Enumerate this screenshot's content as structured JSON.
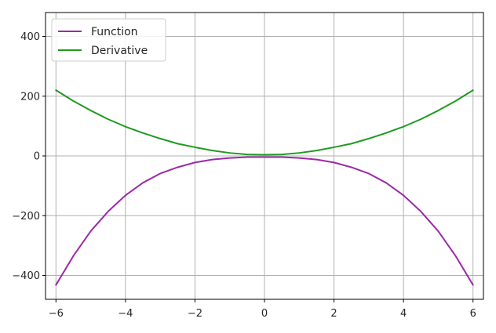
{
  "chart_data": {
    "type": "line",
    "title": "",
    "xlabel": "",
    "ylabel": "",
    "xlim": [
      -6.3,
      6.3
    ],
    "ylim": [
      -480,
      480
    ],
    "xticks": [
      -6,
      -4,
      -2,
      0,
      2,
      4,
      6
    ],
    "xtick_labels": [
      "−6",
      "−4",
      "−2",
      "0",
      "2",
      "4",
      "6"
    ],
    "yticks": [
      -400,
      -200,
      0,
      200,
      400
    ],
    "ytick_labels": [
      "−400",
      "−200",
      "0",
      "200",
      "400"
    ],
    "grid": true,
    "legend_position": "top-left",
    "x": [
      -6,
      -5.5,
      -5,
      -4.5,
      -4,
      -3.5,
      -3,
      -2.5,
      -2,
      -1.5,
      -1,
      -0.5,
      0,
      0.5,
      1,
      1.5,
      2,
      2.5,
      3,
      3.5,
      4,
      4.5,
      5,
      5.5,
      6
    ],
    "series": [
      {
        "name": "Function",
        "color": "#9b2aa8",
        "values": [
          -432,
          -335,
          -252,
          -186,
          -132,
          -90,
          -59,
          -38,
          -22,
          -12,
          -7,
          -4,
          -4,
          -4,
          -7,
          -12,
          -22,
          -38,
          -59,
          -90,
          -132,
          -186,
          -252,
          -335,
          -432
        ]
      },
      {
        "name": "Derivative",
        "color": "#1f9a1f",
        "values": [
          220,
          184,
          152,
          123,
          98,
          77,
          58,
          41,
          29,
          18,
          10,
          5,
          4,
          5,
          10,
          18,
          29,
          41,
          58,
          77,
          98,
          123,
          152,
          184,
          220
        ]
      }
    ]
  }
}
